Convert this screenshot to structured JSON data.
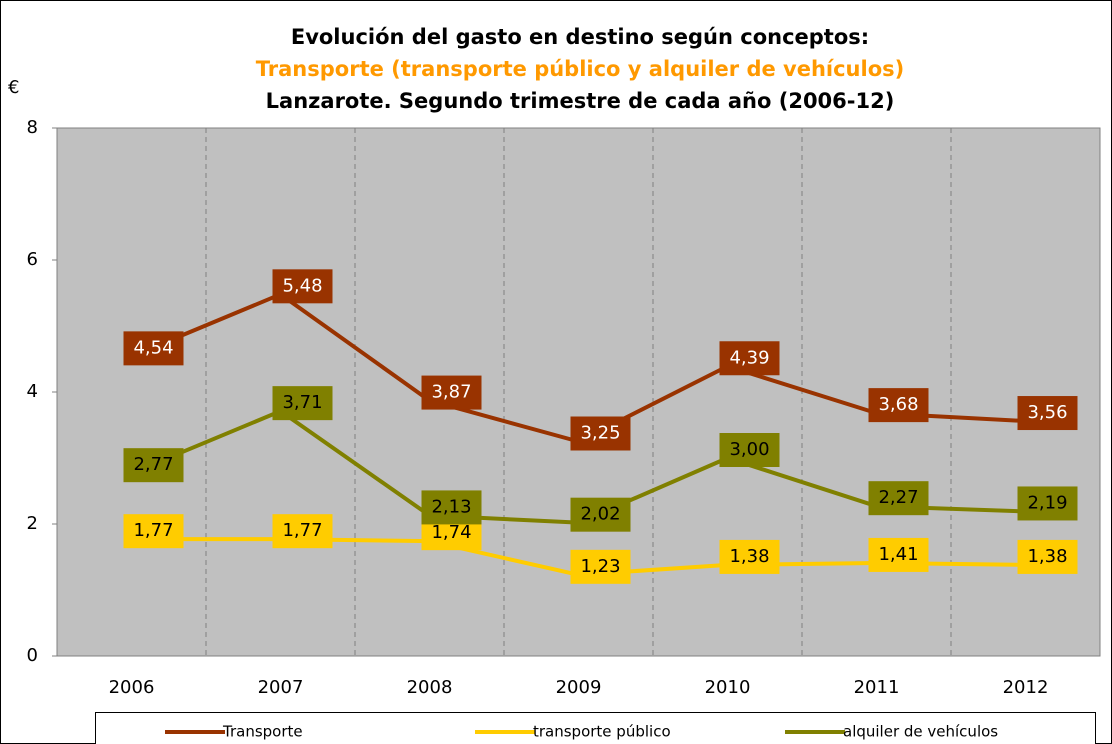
{
  "chart_data": {
    "type": "line",
    "title": "Evolución del gasto en destino según conceptos:",
    "subtitle": "Transporte (transporte público y alquiler de vehículos)",
    "subtitle2": "Lanzarote. Segundo trimestre de cada año (2006-12)",
    "y_label": "€",
    "categories": [
      "2006",
      "2007",
      "2008",
      "2009",
      "2010",
      "2011",
      "2012"
    ],
    "series": [
      {
        "name": "Transporte",
        "color": "#993300",
        "label_color": "#ffffff",
        "values": [
          4.54,
          5.48,
          3.87,
          3.25,
          4.39,
          3.68,
          3.56
        ],
        "value_labels": [
          "4,54",
          "5,48",
          "3,87",
          "3,25",
          "4,39",
          "3,68",
          "3,56"
        ]
      },
      {
        "name": "transporte público",
        "color": "#ffcc00",
        "label_color": "#000000",
        "values": [
          1.77,
          1.77,
          1.74,
          1.23,
          1.38,
          1.41,
          1.38
        ],
        "value_labels": [
          "1,77",
          "1,77",
          "1,74",
          "1,23",
          "1,38",
          "1,41",
          "1,38"
        ]
      },
      {
        "name": "alquiler de vehículos",
        "color": "#808000",
        "label_color": "#000000",
        "values": [
          2.77,
          3.71,
          2.13,
          2.02,
          3.0,
          2.27,
          2.19
        ],
        "value_labels": [
          "2,77",
          "3,71",
          "2,13",
          "2,02",
          "3,00",
          "2,27",
          "2,19"
        ]
      }
    ],
    "ylim": [
      0,
      8
    ],
    "yticks": [
      0,
      2,
      4,
      6,
      8
    ],
    "legend": "bottom"
  }
}
